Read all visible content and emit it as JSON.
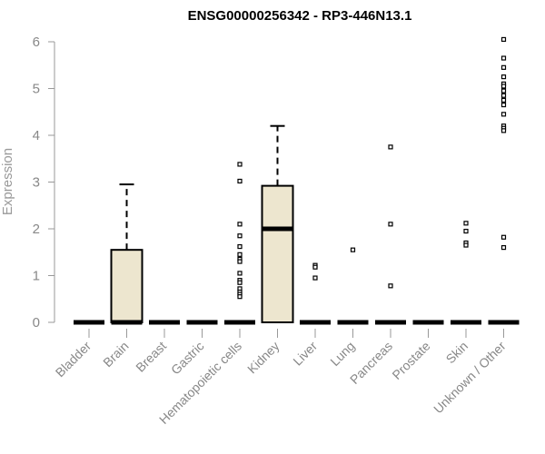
{
  "chart_data": {
    "type": "box",
    "title": "ENSG00000256342 - RP3-446N13.1",
    "ylabel": "Expression",
    "xlabel": "",
    "ylim": [
      0,
      6
    ],
    "yticks": [
      0,
      1,
      2,
      3,
      4,
      5,
      6
    ],
    "grid": false,
    "box_fill": "#ede6cf",
    "line_color": "#000000",
    "categories": [
      "Bladder",
      "Brain",
      "Breast",
      "Gastric",
      "Hematopoietic cells",
      "Kidney",
      "Liver",
      "Lung",
      "Pancreas",
      "Prostate",
      "Skin",
      "Unknown / Other"
    ],
    "boxes": [
      {
        "category": "Bladder",
        "q1": 0,
        "median": 0,
        "q3": 0,
        "whisker_low": 0,
        "whisker_high": 0,
        "outliers": []
      },
      {
        "category": "Brain",
        "q1": 0,
        "median": 0,
        "q3": 1.55,
        "whisker_low": 0,
        "whisker_high": 2.95,
        "outliers": []
      },
      {
        "category": "Breast",
        "q1": 0,
        "median": 0,
        "q3": 0,
        "whisker_low": 0,
        "whisker_high": 0,
        "outliers": []
      },
      {
        "category": "Gastric",
        "q1": 0,
        "median": 0,
        "q3": 0,
        "whisker_low": 0,
        "whisker_high": 0,
        "outliers": []
      },
      {
        "category": "Hematopoietic cells",
        "q1": 0,
        "median": 0,
        "q3": 0,
        "whisker_low": 0,
        "whisker_high": 0,
        "outliers": [
          3.38,
          3.02,
          2.1,
          1.85,
          1.62,
          1.45,
          1.35,
          1.3,
          1.05,
          0.9,
          0.85,
          0.72,
          0.65,
          0.6,
          0.55
        ]
      },
      {
        "category": "Kidney",
        "q1": 0,
        "median": 2.0,
        "q3": 2.92,
        "whisker_low": 0,
        "whisker_high": 4.2,
        "outliers": []
      },
      {
        "category": "Liver",
        "q1": 0,
        "median": 0,
        "q3": 0,
        "whisker_low": 0,
        "whisker_high": 0,
        "outliers": [
          1.22,
          1.18,
          0.95
        ]
      },
      {
        "category": "Lung",
        "q1": 0,
        "median": 0,
        "q3": 0,
        "whisker_low": 0,
        "whisker_high": 0,
        "outliers": [
          1.55
        ]
      },
      {
        "category": "Pancreas",
        "q1": 0,
        "median": 0,
        "q3": 0,
        "whisker_low": 0,
        "whisker_high": 0,
        "outliers": [
          3.75,
          2.1,
          0.78
        ]
      },
      {
        "category": "Prostate",
        "q1": 0,
        "median": 0,
        "q3": 0,
        "whisker_low": 0,
        "whisker_high": 0,
        "outliers": []
      },
      {
        "category": "Skin",
        "q1": 0,
        "median": 0,
        "q3": 0,
        "whisker_low": 0,
        "whisker_high": 0,
        "outliers": [
          2.12,
          1.95,
          1.7,
          1.65
        ]
      },
      {
        "category": "Unknown / Other",
        "q1": 0,
        "median": 0,
        "q3": 0,
        "whisker_low": 0,
        "whisker_high": 0,
        "outliers": [
          6.05,
          5.65,
          5.45,
          5.25,
          5.1,
          5.05,
          4.95,
          4.85,
          4.75,
          4.65,
          4.45,
          4.2,
          4.15,
          4.1,
          1.82,
          1.6
        ]
      }
    ]
  }
}
